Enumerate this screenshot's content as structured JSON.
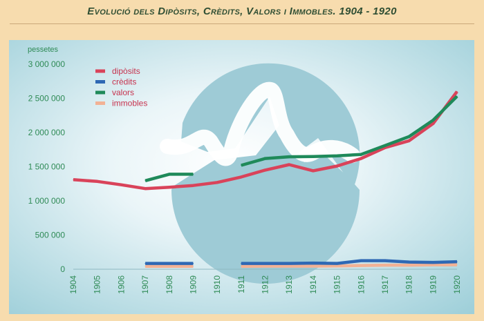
{
  "title": "Evolució dels Dipòsits, Crèdits, Valors i Immobles. 1904 - 1920",
  "colors": {
    "page_background": "#f7dcae",
    "plot_background": "#cfe6ec",
    "plot_center": "#ffffff",
    "decorative_circle": "#9ecbd6",
    "axis_text": "#2e8a55"
  },
  "chart_data": {
    "type": "line",
    "ylabel": "pessetes",
    "xlabel": "",
    "ylim": [
      0,
      3000000
    ],
    "y_ticks": [
      "3 000 000",
      "2 500 000",
      "2 000 000",
      "1 500 000",
      "1 000 000",
      "500 000",
      "0"
    ],
    "y_tick_values": [
      3000000,
      2500000,
      2000000,
      1500000,
      1000000,
      500000,
      0
    ],
    "x": [
      "1904",
      "1905",
      "1906",
      "1907",
      "1908",
      "1909",
      "1910",
      "1911",
      "1912",
      "1913",
      "1914",
      "1915",
      "1916",
      "1917",
      "1918",
      "1919",
      "1920"
    ],
    "grid": false,
    "legend_position": "top-left",
    "series": [
      {
        "name": "dipòsits",
        "color": "#d9435a",
        "values": [
          1310000,
          1285000,
          1235000,
          1180000,
          1200000,
          1225000,
          1270000,
          1350000,
          1450000,
          1530000,
          1440000,
          1510000,
          1620000,
          1780000,
          1880000,
          2130000,
          2600000
        ]
      },
      {
        "name": "crèdits",
        "color": "#2e68b4",
        "values": [
          null,
          null,
          null,
          85000,
          85000,
          85000,
          null,
          85000,
          85000,
          85000,
          90000,
          85000,
          125000,
          125000,
          105000,
          100000,
          110000
        ]
      },
      {
        "name": "valors",
        "color": "#1f8a5a",
        "values": [
          null,
          null,
          null,
          1295000,
          1390000,
          1390000,
          null,
          1520000,
          1620000,
          1645000,
          1650000,
          1660000,
          1680000,
          1810000,
          1940000,
          2180000,
          2530000
        ]
      },
      {
        "name": "immobles",
        "color": "#f2b295",
        "values": [
          null,
          null,
          null,
          42000,
          42000,
          42000,
          null,
          42000,
          45000,
          45000,
          45000,
          47000,
          55000,
          60000,
          60000,
          65000,
          65000
        ]
      }
    ]
  }
}
